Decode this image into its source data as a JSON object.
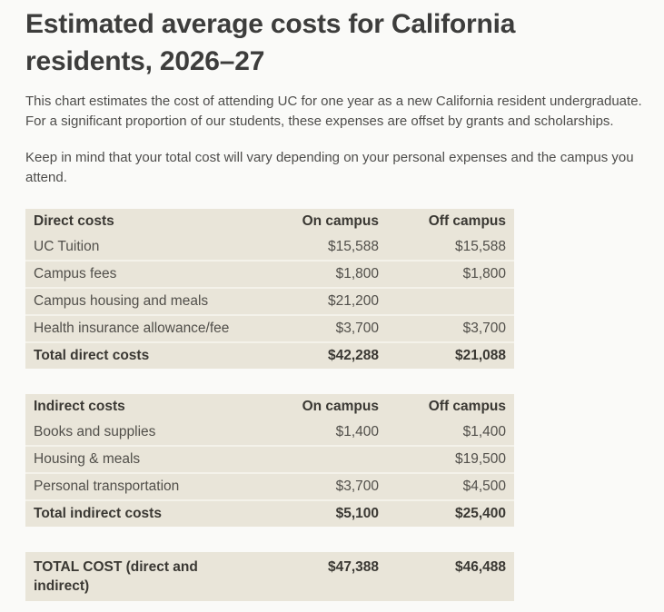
{
  "page": {
    "title": "Estimated average costs for California residents, 2026–27",
    "intro": "This chart estimates the cost of attending UC for one year as a new California resident undergraduate. For a significant proportion of our students, these expenses are offset by grants and scholarships.",
    "note": "Keep in mind that your total cost will vary depending on your personal expenses and the campus you attend."
  },
  "tables": {
    "direct": {
      "headers": {
        "label": "Direct costs",
        "on_campus": "On campus",
        "off_campus": "Off campus"
      },
      "rows": [
        {
          "label": "UC Tuition",
          "on_campus": "$15,588",
          "off_campus": "$15,588"
        },
        {
          "label": "Campus fees",
          "on_campus": "$1,800",
          "off_campus": "$1,800"
        },
        {
          "label": "Campus housing and meals",
          "on_campus": "$21,200",
          "off_campus": ""
        },
        {
          "label": "Health insurance allowance/fee",
          "on_campus": "$3,700",
          "off_campus": "$3,700"
        }
      ],
      "total": {
        "label": "Total direct costs",
        "on_campus": "$42,288",
        "off_campus": "$21,088"
      }
    },
    "indirect": {
      "headers": {
        "label": "Indirect costs",
        "on_campus": "On campus",
        "off_campus": "Off campus"
      },
      "rows": [
        {
          "label": "Books and supplies",
          "on_campus": "$1,400",
          "off_campus": "$1,400"
        },
        {
          "label": "Housing & meals",
          "on_campus": "",
          "off_campus": "$19,500"
        },
        {
          "label": "Personal transportation",
          "on_campus": "$3,700",
          "off_campus": "$4,500"
        }
      ],
      "total": {
        "label": "Total indirect costs",
        "on_campus": "$5,100",
        "off_campus": "$25,400"
      }
    },
    "grand_total": {
      "label": "TOTAL COST (direct and indirect)",
      "on_campus": "$47,388",
      "off_campus": "$46,488"
    }
  },
  "colors": {
    "page_background": "#fafaf8",
    "table_background": "#e9e5d9",
    "row_divider": "#f4f2ea",
    "heading_text": "#3d3d3c",
    "body_text": "#4e4d4b",
    "table_text": "#514f4a",
    "table_bold_text": "#3a3833"
  }
}
